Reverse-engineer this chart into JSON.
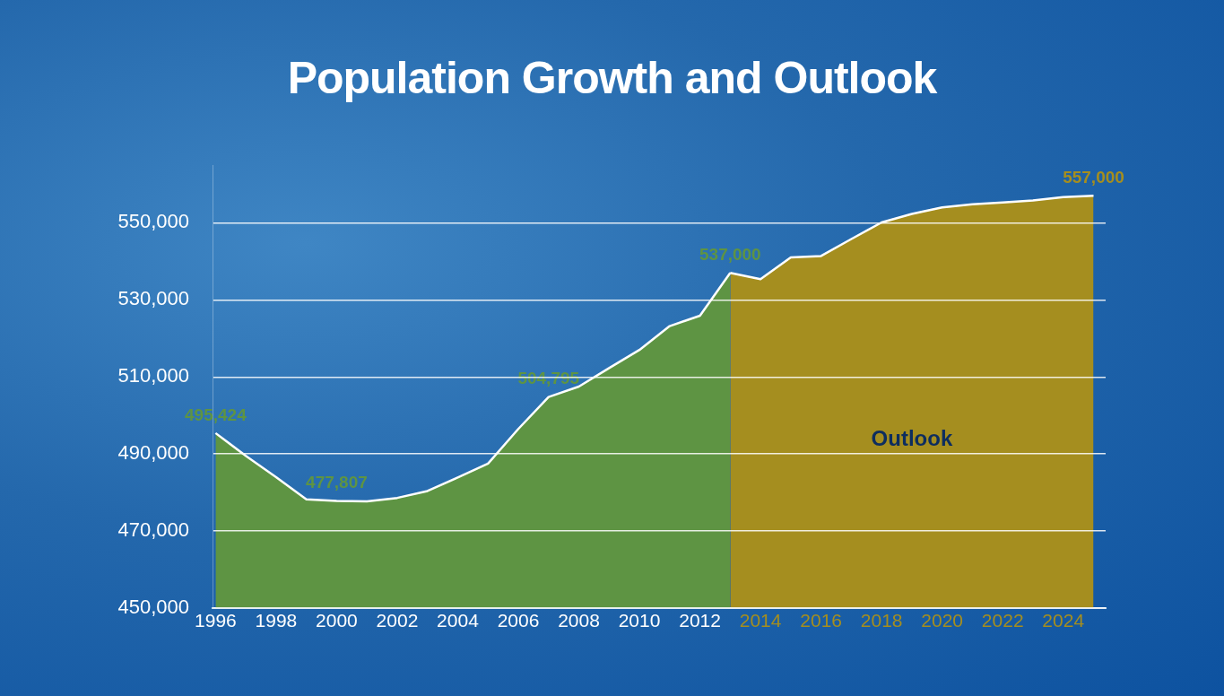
{
  "chart_data": {
    "type": "area",
    "title": "Population Growth and Outlook",
    "series": [
      {
        "color": "#5e9443",
        "x": [
          1996,
          1997,
          1998,
          1999,
          2000,
          2001,
          2002,
          2003,
          2004,
          2005,
          2006,
          2007,
          2008,
          2009,
          2010,
          2011,
          2012,
          2013
        ],
        "values": [
          495424,
          489500,
          484000,
          478200,
          477807,
          477700,
          478600,
          480400,
          483900,
          487500,
          496500,
          504795,
          507500,
          512300,
          517000,
          523200,
          525900,
          537000
        ],
        "value_labels": [
          "495,424",
          null,
          null,
          null,
          "477,807",
          null,
          null,
          null,
          null,
          null,
          null,
          "504,795",
          null,
          null,
          null,
          null,
          null,
          "537,000"
        ]
      },
      {
        "color": "#a58e1f",
        "x": [
          2013,
          2014,
          2015,
          2016,
          2017,
          2018,
          2019,
          2020,
          2021,
          2022,
          2023,
          2024,
          2025
        ],
        "values": [
          537000,
          535400,
          541000,
          541400,
          545800,
          550100,
          552300,
          554000,
          554800,
          555300,
          555800,
          556700,
          557000
        ],
        "value_labels": [
          null,
          null,
          null,
          null,
          null,
          null,
          null,
          null,
          null,
          null,
          null,
          null,
          "557,000"
        ]
      }
    ],
    "xlim": [
      1995.9,
      2025.4
    ],
    "xticks": [
      1996,
      1998,
      2000,
      2002,
      2004,
      2006,
      2008,
      2010,
      2012,
      2014,
      2016,
      2018,
      2020,
      2022,
      2024
    ],
    "ylim": [
      450000,
      565000
    ],
    "yticks": [
      {
        "value": 450000,
        "label": "450,000"
      },
      {
        "value": 470000,
        "label": "470,000"
      },
      {
        "value": 490000,
        "label": "490,000"
      },
      {
        "value": 510000,
        "label": "510,000"
      },
      {
        "value": 530000,
        "label": "530,000"
      },
      {
        "value": 550000,
        "label": "550,000"
      }
    ],
    "grid": "y",
    "legend": false,
    "annotations": [
      "Outlook"
    ]
  }
}
